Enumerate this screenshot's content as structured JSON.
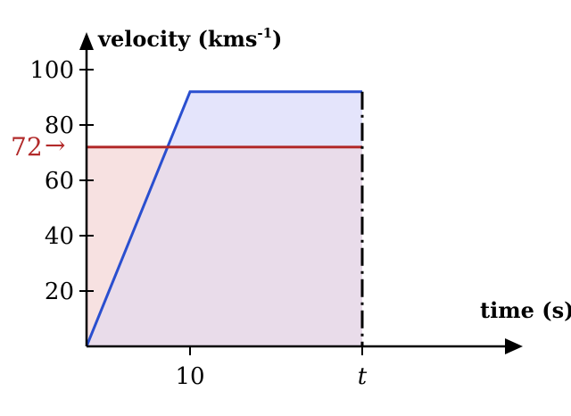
{
  "chart_data": {
    "type": "line",
    "ylabel": "velocity (kms",
    "ylabel_sup": "-1",
    "ylabel_close": ")",
    "xlabel": "time (s)",
    "yticks": [
      20,
      40,
      60,
      80,
      100
    ],
    "xtick_10": "10",
    "xtick_t": "t",
    "ylim": [
      0,
      100
    ],
    "series": [
      {
        "color": "#2a4fcf",
        "fill": "#e4e4fb",
        "points": [
          [
            0,
            0
          ],
          [
            10,
            92
          ],
          [
            "t",
            92
          ]
        ]
      },
      {
        "color": "#b22a2a",
        "fill": "#f7e1e1",
        "points": [
          [
            0,
            72
          ],
          [
            "t",
            72
          ]
        ]
      }
    ],
    "marker": {
      "value": 72,
      "label": "72",
      "arrow": "→"
    },
    "overlap_fill": "#e9dcea"
  }
}
